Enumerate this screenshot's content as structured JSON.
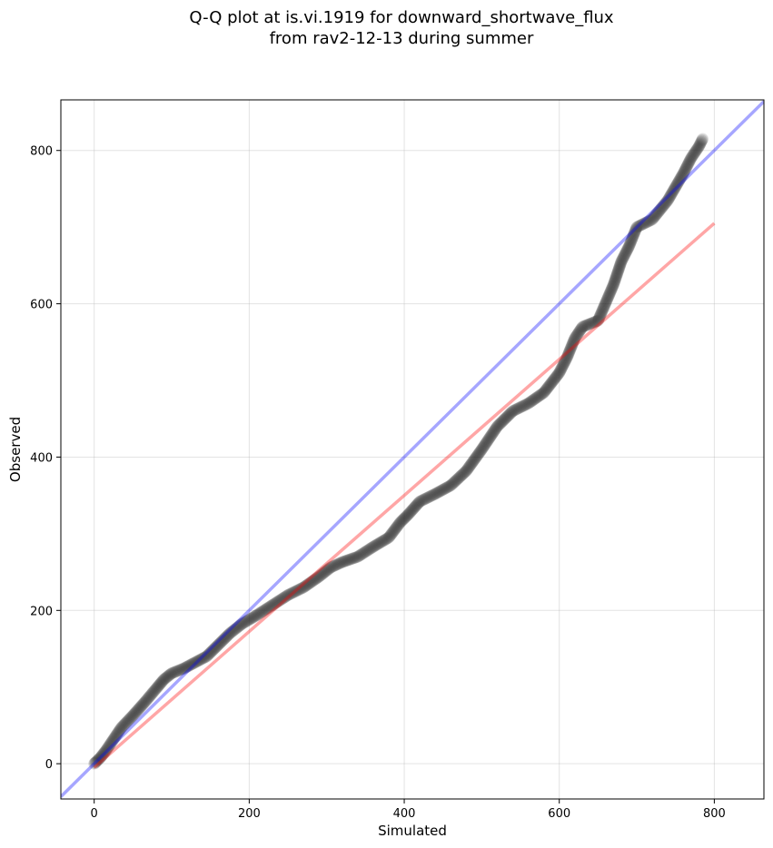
{
  "chart_data": {
    "type": "scatter",
    "title": "Q-Q plot at is.vi.1919 for downward_shortwave_flux",
    "subtitle": "from rav2-12-13 during summer",
    "xlabel": "Simulated",
    "ylabel": "Observed",
    "xlim": [
      -43,
      864
    ],
    "ylim": [
      -46,
      866
    ],
    "xticks": [
      0,
      200,
      400,
      600,
      800
    ],
    "yticks": [
      0,
      200,
      400,
      600,
      800
    ],
    "grid": true,
    "quantile_points": {
      "x": [
        0,
        3,
        8,
        15,
        25,
        35,
        50,
        65,
        80,
        90,
        100,
        115,
        130,
        145,
        160,
        175,
        190,
        210,
        230,
        250,
        270,
        290,
        305,
        320,
        340,
        360,
        380,
        395,
        405,
        420,
        440,
        460,
        480,
        500,
        520,
        540,
        560,
        580,
        600,
        610,
        620,
        630,
        650,
        670,
        680,
        690,
        700,
        710,
        720,
        740,
        760,
        770,
        780,
        785
      ],
      "y": [
        0,
        3,
        8,
        17,
        32,
        47,
        63,
        80,
        98,
        110,
        118,
        124,
        132,
        140,
        155,
        170,
        182,
        194,
        207,
        220,
        230,
        244,
        256,
        263,
        270,
        283,
        295,
        315,
        325,
        342,
        352,
        363,
        382,
        410,
        440,
        460,
        470,
        484,
        510,
        530,
        555,
        570,
        578,
        625,
        655,
        675,
        700,
        705,
        710,
        735,
        770,
        790,
        805,
        815
      ],
      "color": "#222222",
      "opacity": 0.12
    },
    "reference_lines": [
      {
        "kind": "1:1 line",
        "x": [
          -43,
          864
        ],
        "y": [
          -43,
          864
        ],
        "color": "#0000ff",
        "opacity": 0.35
      },
      {
        "kind": "fitted line",
        "x": [
          0,
          800
        ],
        "y": [
          -5,
          705
        ],
        "color": "#ff0000",
        "opacity": 0.35
      }
    ]
  }
}
